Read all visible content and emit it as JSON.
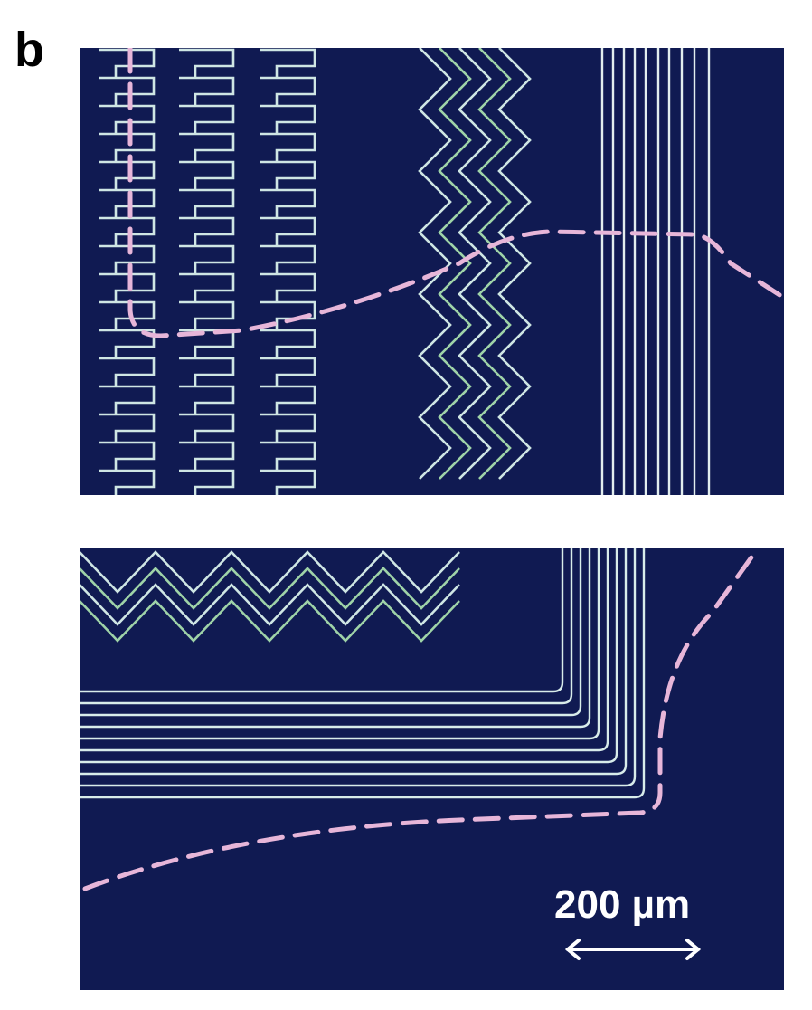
{
  "figure": {
    "panel_label": "b",
    "scale_bar": {
      "label": "200 µm"
    },
    "colors": {
      "substrate": "#101a52",
      "trace": "#cfe6e4",
      "trace_green": "#9fd3a8",
      "fold_line": "#e7b6d9"
    },
    "top_image": {
      "patterns": [
        "serpentine-traces",
        "zigzag-traces",
        "straight-vertical-traces"
      ]
    },
    "bottom_image": {
      "patterns": [
        "zigzag-traces",
        "right-angle-bent-traces"
      ]
    }
  }
}
